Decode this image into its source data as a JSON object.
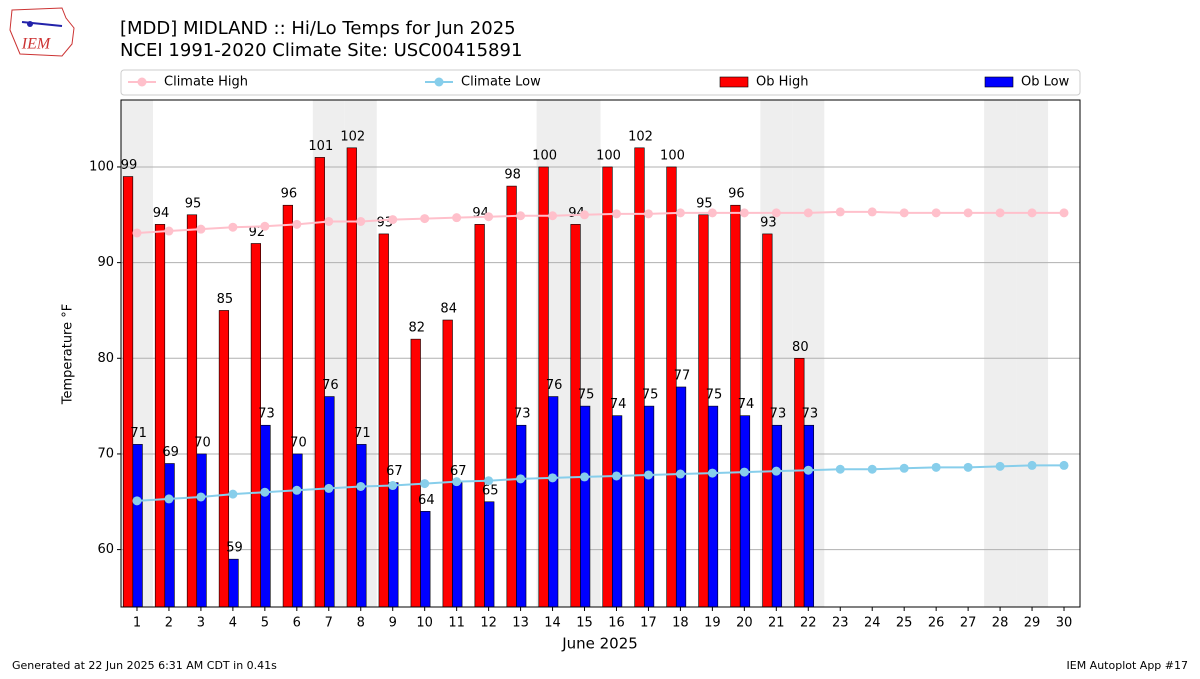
{
  "logo_text": "IEM",
  "footer": {
    "left": "Generated at 22 Jun 2025 6:31 AM CDT in 0.41s",
    "right": "IEM Autoplot App #17"
  },
  "chart_data": {
    "type": "bar",
    "title": "[MDD] MIDLAND :: Hi/Lo Temps for Jun 2025",
    "subtitle": "NCEI 1991-2020 Climate Site: USC00415891",
    "x_label": "June 2025",
    "y_label": "Temperature °F",
    "categories": [
      "1",
      "2",
      "3",
      "4",
      "5",
      "6",
      "7",
      "8",
      "9",
      "10",
      "11",
      "12",
      "13",
      "14",
      "15",
      "16",
      "17",
      "18",
      "19",
      "20",
      "21",
      "22",
      "23",
      "24",
      "25",
      "26",
      "27",
      "28",
      "29",
      "30"
    ],
    "shaded_days": [
      1,
      7,
      8,
      14,
      15,
      21,
      22,
      28,
      29
    ],
    "ylim": [
      54,
      107
    ],
    "yticks": [
      60,
      70,
      80,
      90,
      100
    ],
    "grid": true,
    "legend": "top",
    "series": [
      {
        "name": "Climate High",
        "type": "line",
        "color": "#ffc0cb",
        "values": [
          93.1,
          93.3,
          93.5,
          93.7,
          93.8,
          94.0,
          94.3,
          94.3,
          94.5,
          94.6,
          94.7,
          94.8,
          94.9,
          94.9,
          95.0,
          95.1,
          95.1,
          95.2,
          95.2,
          95.2,
          95.2,
          95.2,
          95.3,
          95.3,
          95.2,
          95.2,
          95.2,
          95.2,
          95.2,
          95.2
        ]
      },
      {
        "name": "Climate Low",
        "type": "line",
        "color": "#87ceeb",
        "values": [
          65.1,
          65.3,
          65.5,
          65.8,
          66.0,
          66.2,
          66.4,
          66.6,
          66.7,
          66.9,
          67.1,
          67.2,
          67.4,
          67.5,
          67.6,
          67.7,
          67.8,
          67.9,
          68.0,
          68.1,
          68.2,
          68.3,
          68.4,
          68.4,
          68.5,
          68.6,
          68.6,
          68.7,
          68.8,
          68.8
        ]
      },
      {
        "name": "Ob High",
        "type": "bar",
        "color": "#ff0000",
        "values": [
          99,
          94,
          95,
          85,
          92,
          96,
          101,
          102,
          93,
          82,
          84,
          94,
          98,
          100,
          94,
          100,
          102,
          100,
          95,
          96,
          93,
          80,
          null,
          null,
          null,
          null,
          null,
          null,
          null,
          null
        ]
      },
      {
        "name": "Ob Low",
        "type": "bar",
        "color": "#0000ff",
        "values": [
          71,
          69,
          70,
          59,
          73,
          70,
          76,
          71,
          67,
          64,
          67,
          65,
          73,
          76,
          75,
          74,
          75,
          77,
          75,
          74,
          73,
          73,
          null,
          null,
          null,
          null,
          null,
          null,
          null,
          null
        ]
      }
    ]
  }
}
